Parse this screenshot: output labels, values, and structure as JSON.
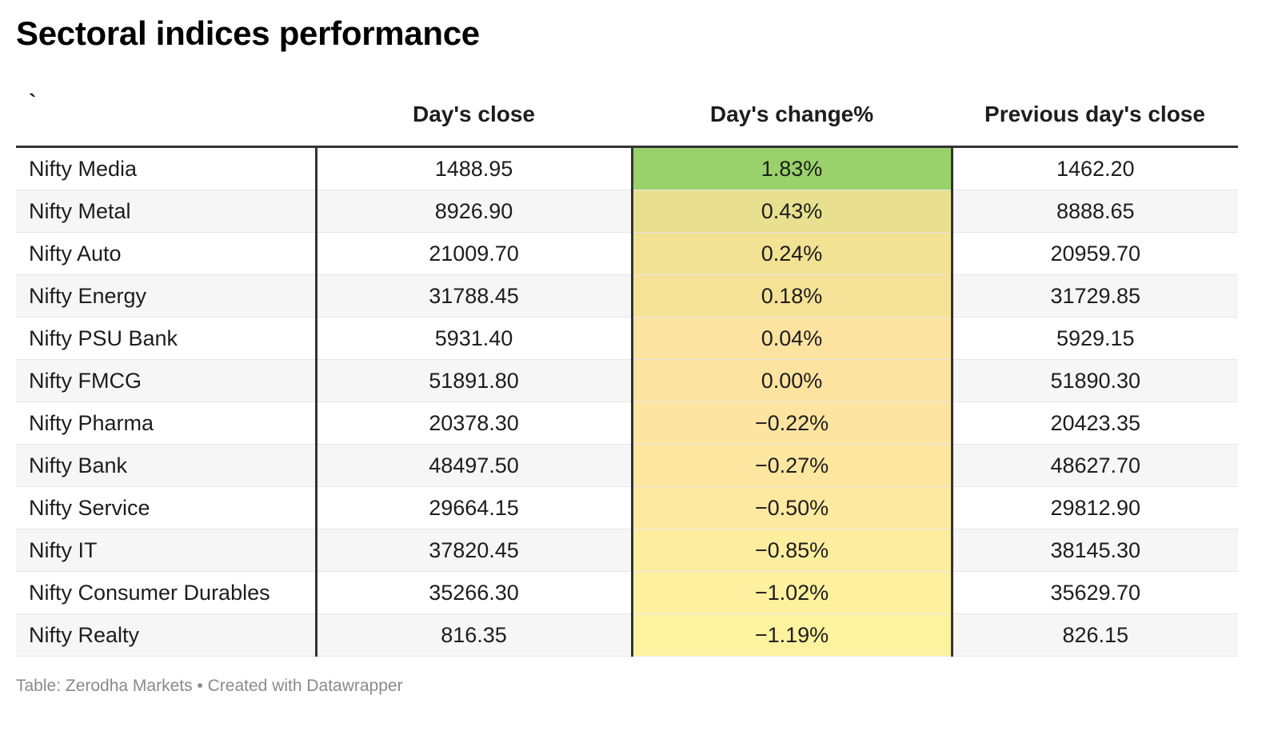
{
  "title": "Sectoral indices performance",
  "footer": "Table: Zerodha Markets • Created with Datawrapper",
  "chart_data": {
    "type": "table",
    "title": "Sectoral indices performance",
    "columns": [
      "`",
      "Day's close",
      "Day's change%",
      "Previous day's close"
    ],
    "heatmap_column": "Day's change%",
    "heatmap_colors": {
      "high": "#9ad16a",
      "mid": "#fde3a0",
      "low": "#fdf29e"
    },
    "rows": [
      {
        "name": "Nifty Media",
        "close": "1488.95",
        "change": "1.83%",
        "change_value": 1.83,
        "prev": "1462.20",
        "color": "#9ad16a"
      },
      {
        "name": "Nifty Metal",
        "close": "8926.90",
        "change": "0.43%",
        "change_value": 0.43,
        "prev": "8888.65",
        "color": "#e8e08e"
      },
      {
        "name": "Nifty Auto",
        "close": "21009.70",
        "change": "0.24%",
        "change_value": 0.24,
        "prev": "20959.70",
        "color": "#f1e294"
      },
      {
        "name": "Nifty Energy",
        "close": "31788.45",
        "change": "0.18%",
        "change_value": 0.18,
        "prev": "31729.85",
        "color": "#f6e297"
      },
      {
        "name": "Nifty PSU Bank",
        "close": "5931.40",
        "change": "0.04%",
        "change_value": 0.04,
        "prev": "5929.15",
        "color": "#fde3a0"
      },
      {
        "name": "Nifty FMCG",
        "close": "51891.80",
        "change": "0.00%",
        "change_value": 0.0,
        "prev": "51890.30",
        "color": "#fde3a0"
      },
      {
        "name": "Nifty Pharma",
        "close": "20378.30",
        "change": "−0.22%",
        "change_value": -0.22,
        "prev": "20423.35",
        "color": "#fde4a0"
      },
      {
        "name": "Nifty Bank",
        "close": "48497.50",
        "change": "−0.27%",
        "change_value": -0.27,
        "prev": "48627.70",
        "color": "#fde6a0"
      },
      {
        "name": "Nifty Service",
        "close": "29664.15",
        "change": "−0.50%",
        "change_value": -0.5,
        "prev": "29812.90",
        "color": "#fde9a0"
      },
      {
        "name": "Nifty IT",
        "close": "37820.45",
        "change": "−0.85%",
        "change_value": -0.85,
        "prev": "38145.30",
        "color": "#fdee9f"
      },
      {
        "name": "Nifty Consumer Durables",
        "close": "35266.30",
        "change": "−1.02%",
        "change_value": -1.02,
        "prev": "35629.70",
        "color": "#fdf09f"
      },
      {
        "name": "Nifty Realty",
        "close": "816.35",
        "change": "−1.19%",
        "change_value": -1.19,
        "prev": "826.15",
        "color": "#fdf29e"
      }
    ]
  }
}
